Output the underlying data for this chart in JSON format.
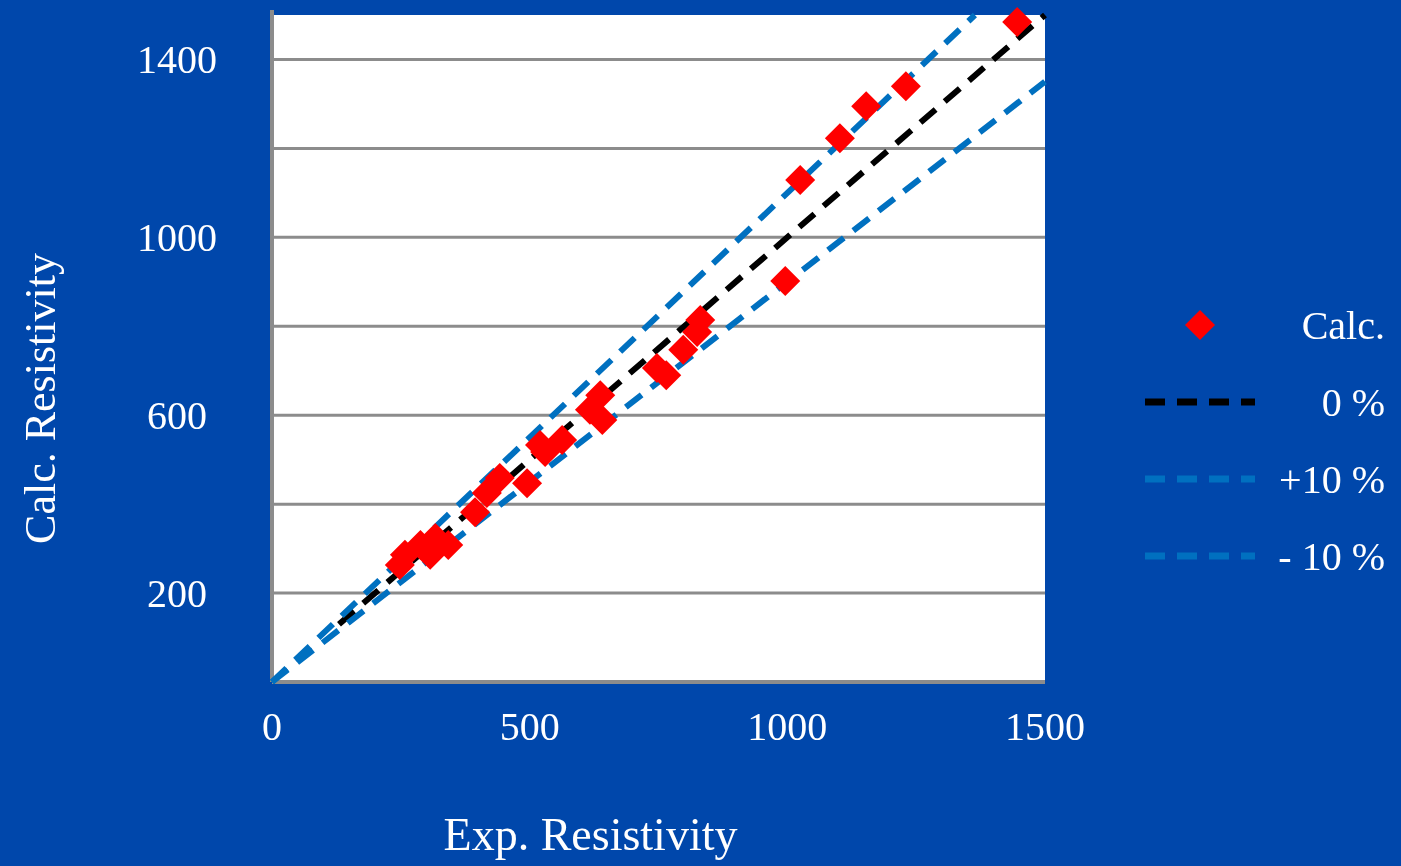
{
  "chart_data": {
    "type": "scatter",
    "xlabel": "Exp. Resistivity",
    "ylabel": "Calc. Resistivity",
    "xlim": [
      0,
      1500
    ],
    "ylim": [
      0,
      1500
    ],
    "xticks": [
      0,
      500,
      1000,
      1500
    ],
    "yticks": [
      {
        "value": 0,
        "label": null
      },
      200,
      {
        "value": 400,
        "label": null
      },
      600,
      {
        "value": 800,
        "label": null
      },
      1000,
      {
        "value": 1200,
        "label": null
      },
      1400
    ],
    "grid": "y",
    "legend": "right",
    "marker": "diamond",
    "series": [
      {
        "name": "Calc.",
        "color": "#ff0000",
        "x": [
          1446,
          1230,
          1153,
          1102,
          1025,
          996,
          831,
          825,
          798,
          765,
          747,
          637,
          641,
          617,
          563,
          530,
          520,
          495,
          442,
          417,
          394,
          342,
          317,
          288,
          258,
          248,
          307
        ],
        "values": [
          1484,
          1340,
          1295,
          1223,
          1129,
          902,
          814,
          787,
          747,
          690,
          706,
          645,
          589,
          612,
          544,
          517,
          533,
          447,
          459,
          425,
          382,
          308,
          324,
          308,
          286,
          263,
          286
        ]
      },
      {
        "name": "0 %",
        "type": "line",
        "marker": "none",
        "line_style": "dashed",
        "color": "#000000",
        "x": [
          130,
          1500
        ],
        "values": [
          130,
          1500
        ]
      },
      {
        "name": "+10 %",
        "type": "line",
        "marker": "none",
        "line_style": "dashed",
        "color": "#0070c0",
        "x": [
          0,
          1364
        ],
        "values": [
          0,
          1500
        ]
      },
      {
        "name": "- 10 %",
        "type": "line",
        "marker": "none",
        "line_style": "dashed",
        "color": "#0070c0",
        "x": [
          0,
          1500
        ],
        "values": [
          0,
          1350
        ]
      }
    ]
  }
}
